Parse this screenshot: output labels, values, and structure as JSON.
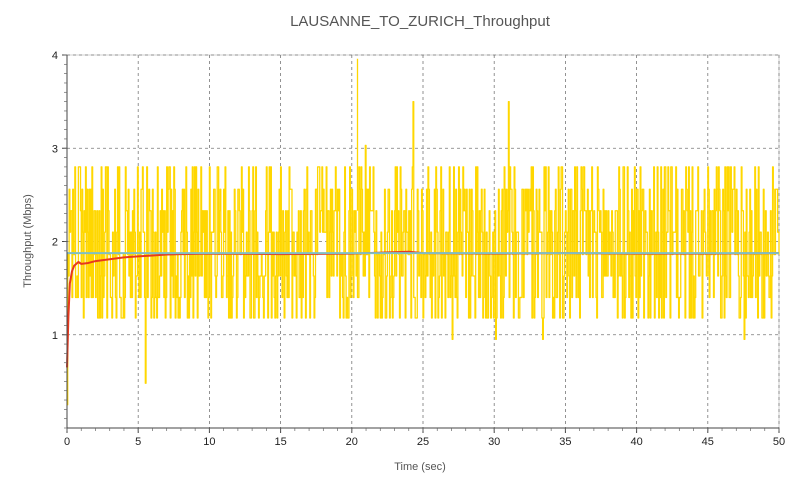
{
  "chart_data": {
    "type": "line",
    "title": "LAUSANNE_TO_ZURICH_Throughput",
    "xlabel": "Time (sec)",
    "ylabel": "Throughput (Mbps)",
    "xlim": [
      0,
      50
    ],
    "ylim": [
      0,
      4
    ],
    "x_ticks": [
      0,
      5,
      10,
      15,
      20,
      25,
      30,
      35,
      40,
      45,
      50
    ],
    "y_ticks": [
      1,
      2,
      3,
      4
    ],
    "grid": true,
    "series": [
      {
        "color": "#FFD700",
        "style": "step",
        "sample_interval": 0.05,
        "value_levels": [
          0.25,
          0.48,
          0.72,
          0.95,
          1.18,
          1.4,
          1.63,
          1.86,
          2.1,
          2.33,
          2.56,
          2.8,
          3.03,
          3.26,
          3.5,
          3.73,
          3.96
        ],
        "typical_range": [
          1.15,
          2.8
        ],
        "extremes": {
          "min": 0.25,
          "max": 3.96
        }
      },
      {
        "color": "#E8391D",
        "style": "line",
        "x": [
          0.0,
          0.1,
          0.2,
          0.35,
          0.5,
          0.8,
          1.0,
          1.5,
          2.0,
          3.0,
          4.0,
          5.0,
          6.0,
          7.0,
          8.0,
          10.0,
          15.0,
          20.0,
          24.0,
          25.0,
          30.0,
          35.0,
          40.0,
          45.0,
          50.0
        ],
        "y": [
          0.65,
          1.2,
          1.55,
          1.68,
          1.74,
          1.78,
          1.76,
          1.77,
          1.79,
          1.81,
          1.83,
          1.84,
          1.85,
          1.86,
          1.865,
          1.87,
          1.865,
          1.87,
          1.89,
          1.875,
          1.87,
          1.875,
          1.87,
          1.87,
          1.875
        ]
      },
      {
        "color": "#7FBFC4",
        "style": "line",
        "x": [
          0,
          50
        ],
        "y": [
          1.875,
          1.875
        ]
      }
    ]
  }
}
